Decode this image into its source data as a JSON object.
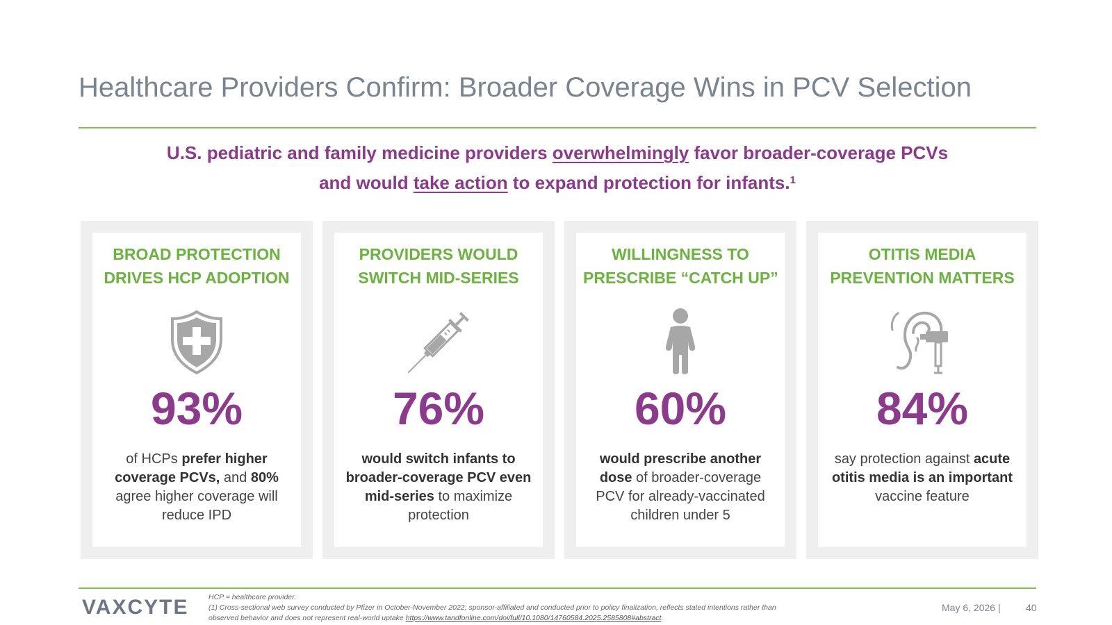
{
  "slide": {
    "title": "Healthcare Providers Confirm: Broader Coverage Wins in PCV Selection",
    "subtitle": {
      "line1_a": "U.S. pediatric and family medicine providers ",
      "line1_u": "overwhelmingly",
      "line1_b": " favor broader-coverage PCVs",
      "line2_a": "and would ",
      "line2_u": "take action",
      "line2_b": " to expand protection for infants.",
      "sup": "1"
    }
  },
  "cards": [
    {
      "heading_1": "BROAD PROTECTION",
      "heading_2": "DRIVES HCP ADOPTION",
      "icon": "shield-plus-icon",
      "stat": "93%",
      "desc": {
        "t1": "of HCPs ",
        "b1": "prefer higher coverage PCVs,",
        "t2": " and ",
        "b2": "80%",
        "t3": " agree higher coverage will reduce IPD"
      }
    },
    {
      "heading_1": "PROVIDERS WOULD",
      "heading_2": "SWITCH MID-SERIES",
      "icon": "syringe-icon",
      "stat": "76%",
      "desc": {
        "b1": "would switch infants to broader-coverage PCV even mid-series",
        "t1": " to maximize protection"
      }
    },
    {
      "heading_1": "WILLINGNESS TO",
      "heading_2": "PRESCRIBE “CATCH UP”",
      "icon": "child-icon",
      "stat": "60%",
      "desc": {
        "b1": "would prescribe another dose",
        "t1": " of broader-coverage PCV for already-vaccinated children under 5"
      }
    },
    {
      "heading_1": "OTITIS MEDIA",
      "heading_2": "PREVENTION MATTERS",
      "icon": "ear-otoscope-icon",
      "stat": "84%",
      "desc": {
        "t1": "say protection against ",
        "b1": "acute otitis media is an important",
        "t2": " vaccine feature"
      }
    }
  ],
  "footer": {
    "logo": "VAXCYTE",
    "footnote_1": "HCP = healthcare provider.",
    "footnote_2": "(1) Cross-sectional web survey conducted by Pfizer in October-November 2022; sponsor-affiliated and conducted prior to policy finalization, reflects stated intentions rather than",
    "footnote_3": "observed behavior and does not represent real-world uptake ",
    "footnote_link": "https://www.tandfonline.com/doi/full/10.1080/14760584.2025.2585808#abstract",
    "footnote_end": ".",
    "date": "May 6, 2026  |",
    "page": "40"
  },
  "colors": {
    "accent_green": "#7cc14d",
    "heading_green": "#6ab43e",
    "stat_purple": "#8b3a8c",
    "title_gray": "#7a8490",
    "icon_gray": "#a7a7a7"
  }
}
